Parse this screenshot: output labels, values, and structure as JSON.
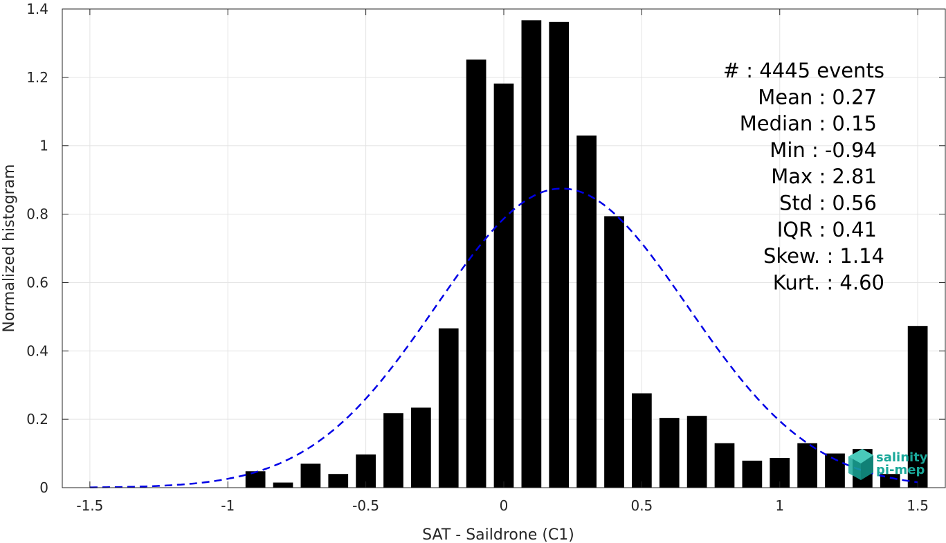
{
  "chart_data": {
    "type": "bar",
    "xlabel": "SAT - Saildrone (C1)",
    "ylabel": "Normalized histogram",
    "xlim": [
      -1.6,
      1.6
    ],
    "ylim": [
      0,
      1.4
    ],
    "xticks": [
      -1.5,
      -1,
      -0.5,
      0,
      0.5,
      1,
      1.5
    ],
    "xtick_labels": [
      "-1.5",
      "-1",
      "-0.5",
      "0",
      "0.5",
      "1",
      "1.5"
    ],
    "yticks": [
      0,
      0.2,
      0.4,
      0.6,
      0.8,
      1,
      1.2,
      1.4
    ],
    "ytick_labels": [
      "0",
      "0.2",
      "0.4",
      "0.6",
      "0.8",
      "1",
      "1.2",
      "1.4"
    ],
    "grid": true,
    "bar_color": "#000000",
    "bin_width": 0.1,
    "bins": [
      {
        "x": -0.9,
        "y": 0.048
      },
      {
        "x": -0.8,
        "y": 0.015
      },
      {
        "x": -0.7,
        "y": 0.07
      },
      {
        "x": -0.6,
        "y": 0.04
      },
      {
        "x": -0.5,
        "y": 0.097
      },
      {
        "x": -0.4,
        "y": 0.218
      },
      {
        "x": -0.3,
        "y": 0.234
      },
      {
        "x": -0.2,
        "y": 0.466
      },
      {
        "x": -0.1,
        "y": 1.252
      },
      {
        "x": 0.0,
        "y": 1.182
      },
      {
        "x": 0.1,
        "y": 1.367
      },
      {
        "x": 0.2,
        "y": 1.362
      },
      {
        "x": 0.3,
        "y": 1.03
      },
      {
        "x": 0.4,
        "y": 0.794
      },
      {
        "x": 0.5,
        "y": 0.276
      },
      {
        "x": 0.6,
        "y": 0.204
      },
      {
        "x": 0.7,
        "y": 0.21
      },
      {
        "x": 0.8,
        "y": 0.13
      },
      {
        "x": 0.9,
        "y": 0.079
      },
      {
        "x": 1.0,
        "y": 0.087
      },
      {
        "x": 1.1,
        "y": 0.13
      },
      {
        "x": 1.2,
        "y": 0.1
      },
      {
        "x": 1.3,
        "y": 0.113
      },
      {
        "x": 1.4,
        "y": 0.04
      },
      {
        "x": 1.5,
        "y": 0.473
      }
    ],
    "fit_curve": {
      "style": "dashed",
      "color": "#0000e6",
      "mean": 0.21,
      "std": 0.456,
      "x_range": [
        -1.5,
        1.5
      ]
    },
    "stats": {
      "rows": [
        {
          "label": "#  : 4445 events"
        },
        {
          "label": "Mean : 0.27"
        },
        {
          "label": "Median : 0.15"
        },
        {
          "label": "Min : -0.94"
        },
        {
          "label": "Max : 2.81"
        },
        {
          "label": "Std : 0.56"
        },
        {
          "label": "IQR : 0.41"
        },
        {
          "label": "Skew. : 1.14"
        },
        {
          "label": "Kurt. : 4.60"
        }
      ]
    }
  },
  "logo": {
    "line1": "salinity",
    "line2": "pi-mep",
    "color": "#1aa89a"
  }
}
